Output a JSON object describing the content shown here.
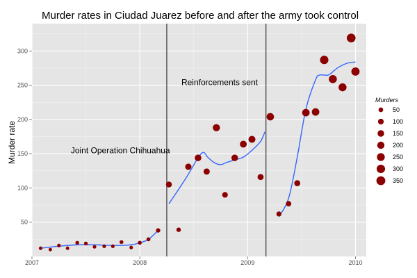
{
  "chart_data": {
    "type": "scatter",
    "title": "Murder rates in Ciudad Juarez before and after the army took control",
    "xlabel": "",
    "ylabel": "Murder rate",
    "xlim": [
      2007.0,
      2010.1
    ],
    "ylim": [
      0,
      340
    ],
    "x_ticks": [
      2007,
      2008,
      2009,
      2010
    ],
    "y_ticks": [
      50,
      100,
      150,
      200,
      250,
      300
    ],
    "grid": true,
    "background": "#e5e5e5",
    "point_color": "#8b0000",
    "smooth_color": "#3366ff",
    "vlines": [
      2008.25,
      2009.17
    ],
    "annotations": [
      {
        "text": "Joint Operation Chihuahua",
        "x": 2007.82,
        "y": 155
      },
      {
        "text": "Reinforcements sent",
        "x": 2008.74,
        "y": 254
      }
    ],
    "points": [
      {
        "x": 2007.08,
        "y": 12,
        "murders": 15
      },
      {
        "x": 2007.17,
        "y": 10,
        "murders": 13
      },
      {
        "x": 2007.25,
        "y": 16,
        "murders": 18
      },
      {
        "x": 2007.33,
        "y": 12,
        "murders": 15
      },
      {
        "x": 2007.42,
        "y": 20,
        "murders": 22
      },
      {
        "x": 2007.5,
        "y": 19,
        "murders": 21
      },
      {
        "x": 2007.58,
        "y": 14,
        "murders": 17
      },
      {
        "x": 2007.67,
        "y": 15,
        "murders": 18
      },
      {
        "x": 2007.75,
        "y": 15,
        "murders": 18
      },
      {
        "x": 2007.83,
        "y": 21,
        "murders": 23
      },
      {
        "x": 2007.92,
        "y": 13,
        "murders": 16
      },
      {
        "x": 2008.0,
        "y": 20,
        "murders": 24
      },
      {
        "x": 2008.08,
        "y": 25,
        "murders": 27
      },
      {
        "x": 2008.17,
        "y": 38,
        "murders": 40
      },
      {
        "x": 2008.27,
        "y": 105,
        "murders": 110
      },
      {
        "x": 2008.36,
        "y": 39,
        "murders": 42
      },
      {
        "x": 2008.45,
        "y": 131,
        "murders": 138
      },
      {
        "x": 2008.54,
        "y": 144,
        "murders": 150
      },
      {
        "x": 2008.62,
        "y": 124,
        "murders": 130
      },
      {
        "x": 2008.71,
        "y": 188,
        "murders": 195
      },
      {
        "x": 2008.79,
        "y": 90,
        "murders": 95
      },
      {
        "x": 2008.88,
        "y": 144,
        "murders": 150
      },
      {
        "x": 2008.96,
        "y": 164,
        "murders": 170
      },
      {
        "x": 2009.04,
        "y": 171,
        "murders": 180
      },
      {
        "x": 2009.12,
        "y": 116,
        "murders": 120
      },
      {
        "x": 2009.21,
        "y": 204,
        "murders": 215
      },
      {
        "x": 2009.29,
        "y": 62,
        "murders": 65
      },
      {
        "x": 2009.38,
        "y": 77,
        "murders": 80
      },
      {
        "x": 2009.46,
        "y": 107,
        "murders": 112
      },
      {
        "x": 2009.54,
        "y": 210,
        "murders": 220
      },
      {
        "x": 2009.63,
        "y": 211,
        "murders": 220
      },
      {
        "x": 2009.71,
        "y": 287,
        "murders": 300
      },
      {
        "x": 2009.79,
        "y": 259,
        "murders": 270
      },
      {
        "x": 2009.88,
        "y": 247,
        "murders": 260
      },
      {
        "x": 2009.96,
        "y": 319,
        "murders": 335
      },
      {
        "x": 2010.0,
        "y": 270,
        "murders": 285
      }
    ],
    "smooth_segments": [
      [
        [
          2007.08,
          12
        ],
        [
          2007.25,
          15
        ],
        [
          2007.42,
          17
        ],
        [
          2007.58,
          17
        ],
        [
          2007.75,
          16
        ],
        [
          2007.92,
          17
        ],
        [
          2008.0,
          20
        ],
        [
          2008.08,
          25
        ],
        [
          2008.17,
          38
        ]
      ],
      [
        [
          2008.27,
          77
        ],
        [
          2008.36,
          98
        ],
        [
          2008.45,
          120
        ],
        [
          2008.54,
          144
        ],
        [
          2008.59,
          152
        ],
        [
          2008.63,
          145
        ],
        [
          2008.69,
          137
        ],
        [
          2008.75,
          134
        ],
        [
          2008.8,
          137
        ],
        [
          2008.88,
          141
        ],
        [
          2008.96,
          145
        ],
        [
          2009.04,
          155
        ],
        [
          2009.12,
          168
        ],
        [
          2009.16,
          182
        ]
      ],
      [
        [
          2009.29,
          58
        ],
        [
          2009.38,
          85
        ],
        [
          2009.46,
          145
        ],
        [
          2009.54,
          215
        ],
        [
          2009.63,
          258
        ],
        [
          2009.67,
          265
        ],
        [
          2009.75,
          265
        ],
        [
          2009.83,
          275
        ],
        [
          2009.92,
          282
        ],
        [
          2010.0,
          284
        ]
      ]
    ],
    "legend": {
      "title": "Murders",
      "entries": [
        {
          "label": "50",
          "value": 50
        },
        {
          "label": "100",
          "value": 100
        },
        {
          "label": "150",
          "value": 150
        },
        {
          "label": "200",
          "value": 200
        },
        {
          "label": "250",
          "value": 250
        },
        {
          "label": "300",
          "value": 300
        },
        {
          "label": "350",
          "value": 350
        }
      ]
    }
  }
}
